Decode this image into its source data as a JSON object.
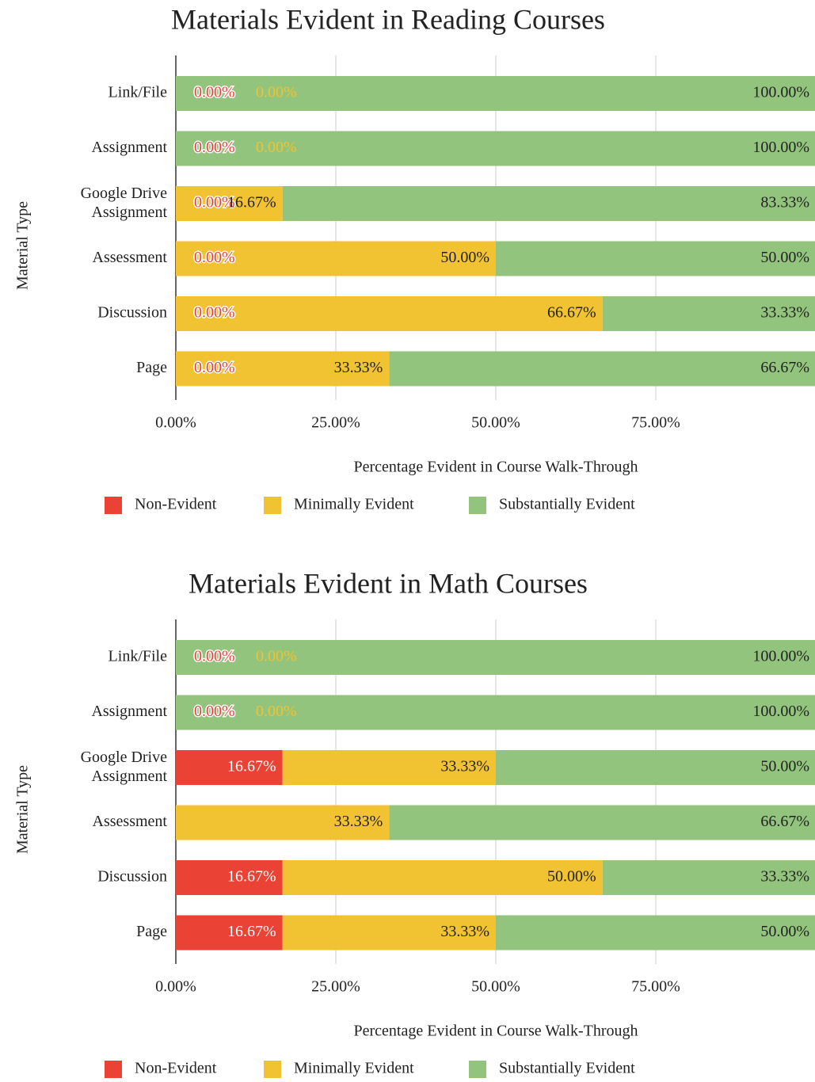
{
  "chart_data": [
    {
      "type": "stacked-bar-horizontal",
      "title": "Materials Evident in Reading Courses",
      "x_label": "Percentage Evident in Course Walk-Through",
      "y_label": "Material Type",
      "categories": [
        "Link/File",
        "Assignment",
        "Google Drive Assignment",
        "Assessment",
        "Discussion",
        "Page"
      ],
      "xlim": [
        0,
        100
      ],
      "xticks": [
        {
          "value": 0,
          "label": "0.00%"
        },
        {
          "value": 25,
          "label": "25.00%"
        },
        {
          "value": 50,
          "label": "50.00%"
        },
        {
          "value": 75,
          "label": "75.00%"
        }
      ],
      "grid": true,
      "legend": "bottom",
      "series": [
        {
          "name": "Non-Evident",
          "color": "#ea4335",
          "values": [
            0,
            0,
            0,
            0,
            0,
            0
          ],
          "value_labels": [
            "0.00%",
            "0.00%",
            "0.00%",
            "0.00%",
            "0.00%",
            "0.00%"
          ]
        },
        {
          "name": "Minimally Evident",
          "color": "#f1c232",
          "values": [
            0,
            0,
            16.67,
            50,
            66.67,
            33.33
          ],
          "value_labels": [
            "0.00%",
            "0.00%",
            "16.67%",
            "50.00%",
            "66.67%",
            "33.33%"
          ]
        },
        {
          "name": "Substantially Evident",
          "color": "#93c47d",
          "values": [
            100,
            100,
            83.33,
            50,
            33.33,
            66.67
          ],
          "value_labels": [
            "100.00%",
            "100.00%",
            "83.33%",
            "50.00%",
            "33.33%",
            "66.67%"
          ]
        }
      ]
    },
    {
      "type": "stacked-bar-horizontal",
      "title": "Materials Evident in Math Courses",
      "x_label": "Percentage Evident in Course Walk-Through",
      "y_label": "Material Type",
      "categories": [
        "Link/File",
        "Assignment",
        "Google Drive Assignment",
        "Assessment",
        "Discussion",
        "Page"
      ],
      "xlim": [
        0,
        100
      ],
      "xticks": [
        {
          "value": 0,
          "label": "0.00%"
        },
        {
          "value": 25,
          "label": "25.00%"
        },
        {
          "value": 50,
          "label": "50.00%"
        },
        {
          "value": 75,
          "label": "75.00%"
        }
      ],
      "grid": true,
      "legend": "bottom",
      "series": [
        {
          "name": "Non-Evident",
          "color": "#ea4335",
          "values": [
            0,
            0,
            16.67,
            0,
            16.67,
            16.67
          ],
          "value_labels": [
            "0.00%",
            "0.00%",
            "16.67%",
            null,
            "16.67%",
            "16.67%"
          ]
        },
        {
          "name": "Minimally Evident",
          "color": "#f1c232",
          "values": [
            0,
            0,
            33.33,
            33.33,
            50,
            33.33
          ],
          "value_labels": [
            "0.00%",
            "0.00%",
            "33.33%",
            "33.33%",
            "50.00%",
            "33.33%"
          ]
        },
        {
          "name": "Substantially Evident",
          "color": "#93c47d",
          "values": [
            100,
            100,
            50,
            66.67,
            33.33,
            50
          ],
          "value_labels": [
            "100.00%",
            "100.00%",
            "50.00%",
            "66.67%",
            "33.33%",
            "50.00%"
          ]
        }
      ]
    }
  ]
}
